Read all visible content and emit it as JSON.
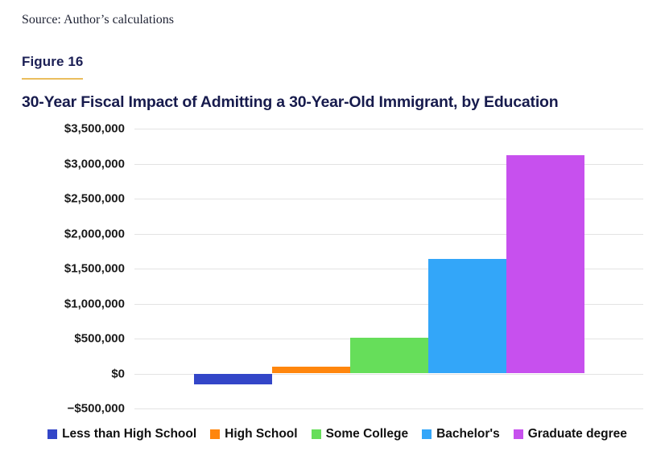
{
  "source": {
    "text": "Source: Author’s calculations"
  },
  "figure": {
    "label": "Figure 16",
    "underline_color": "#eabd5d"
  },
  "title": "30-Year Fiscal Impact of Admitting a 30-Year-Old Immigrant, by Education",
  "colors": {
    "heading_navy": "#171b4d",
    "gridline": "#e3e3e3",
    "axis_label": "#1a1a1a",
    "gold_rule": "#eabd5d"
  },
  "chart_data": {
    "type": "bar",
    "title": "30-Year Fiscal Impact of Admitting a 30-Year-Old Immigrant, by Education",
    "categories": [
      "Less than High School",
      "High School",
      "Some College",
      "Bachelor's",
      "Graduate degree"
    ],
    "values": [
      -150000,
      100000,
      510000,
      1640000,
      3120000
    ],
    "bar_colors": [
      "#3346c8",
      "#ff860d",
      "#66de5a",
      "#33a6f9",
      "#c750ee"
    ],
    "xlabel": "",
    "ylabel": "",
    "ylim": [
      -500000,
      3500000
    ],
    "grid": true,
    "legend_position": "bottom",
    "yticks": [
      {
        "value": 3500000,
        "label": "$3,500,000"
      },
      {
        "value": 3000000,
        "label": "$3,000,000"
      },
      {
        "value": 2500000,
        "label": "$2,500,000"
      },
      {
        "value": 2000000,
        "label": "$2,000,000"
      },
      {
        "value": 1500000,
        "label": "$1,500,000"
      },
      {
        "value": 1000000,
        "label": "$1,000,000"
      },
      {
        "value": 500000,
        "label": "$500,000"
      },
      {
        "value": 0,
        "label": "$0"
      },
      {
        "value": -500000,
        "label": "−$500,000"
      }
    ]
  },
  "legend": {
    "items": [
      {
        "label": "Less than High School",
        "color": "#3346c8"
      },
      {
        "label": "High School",
        "color": "#ff860d"
      },
      {
        "label": "Some College",
        "color": "#66de5a"
      },
      {
        "label": "Bachelor's",
        "color": "#33a6f9"
      },
      {
        "label": "Graduate degree",
        "color": "#c750ee"
      }
    ]
  }
}
